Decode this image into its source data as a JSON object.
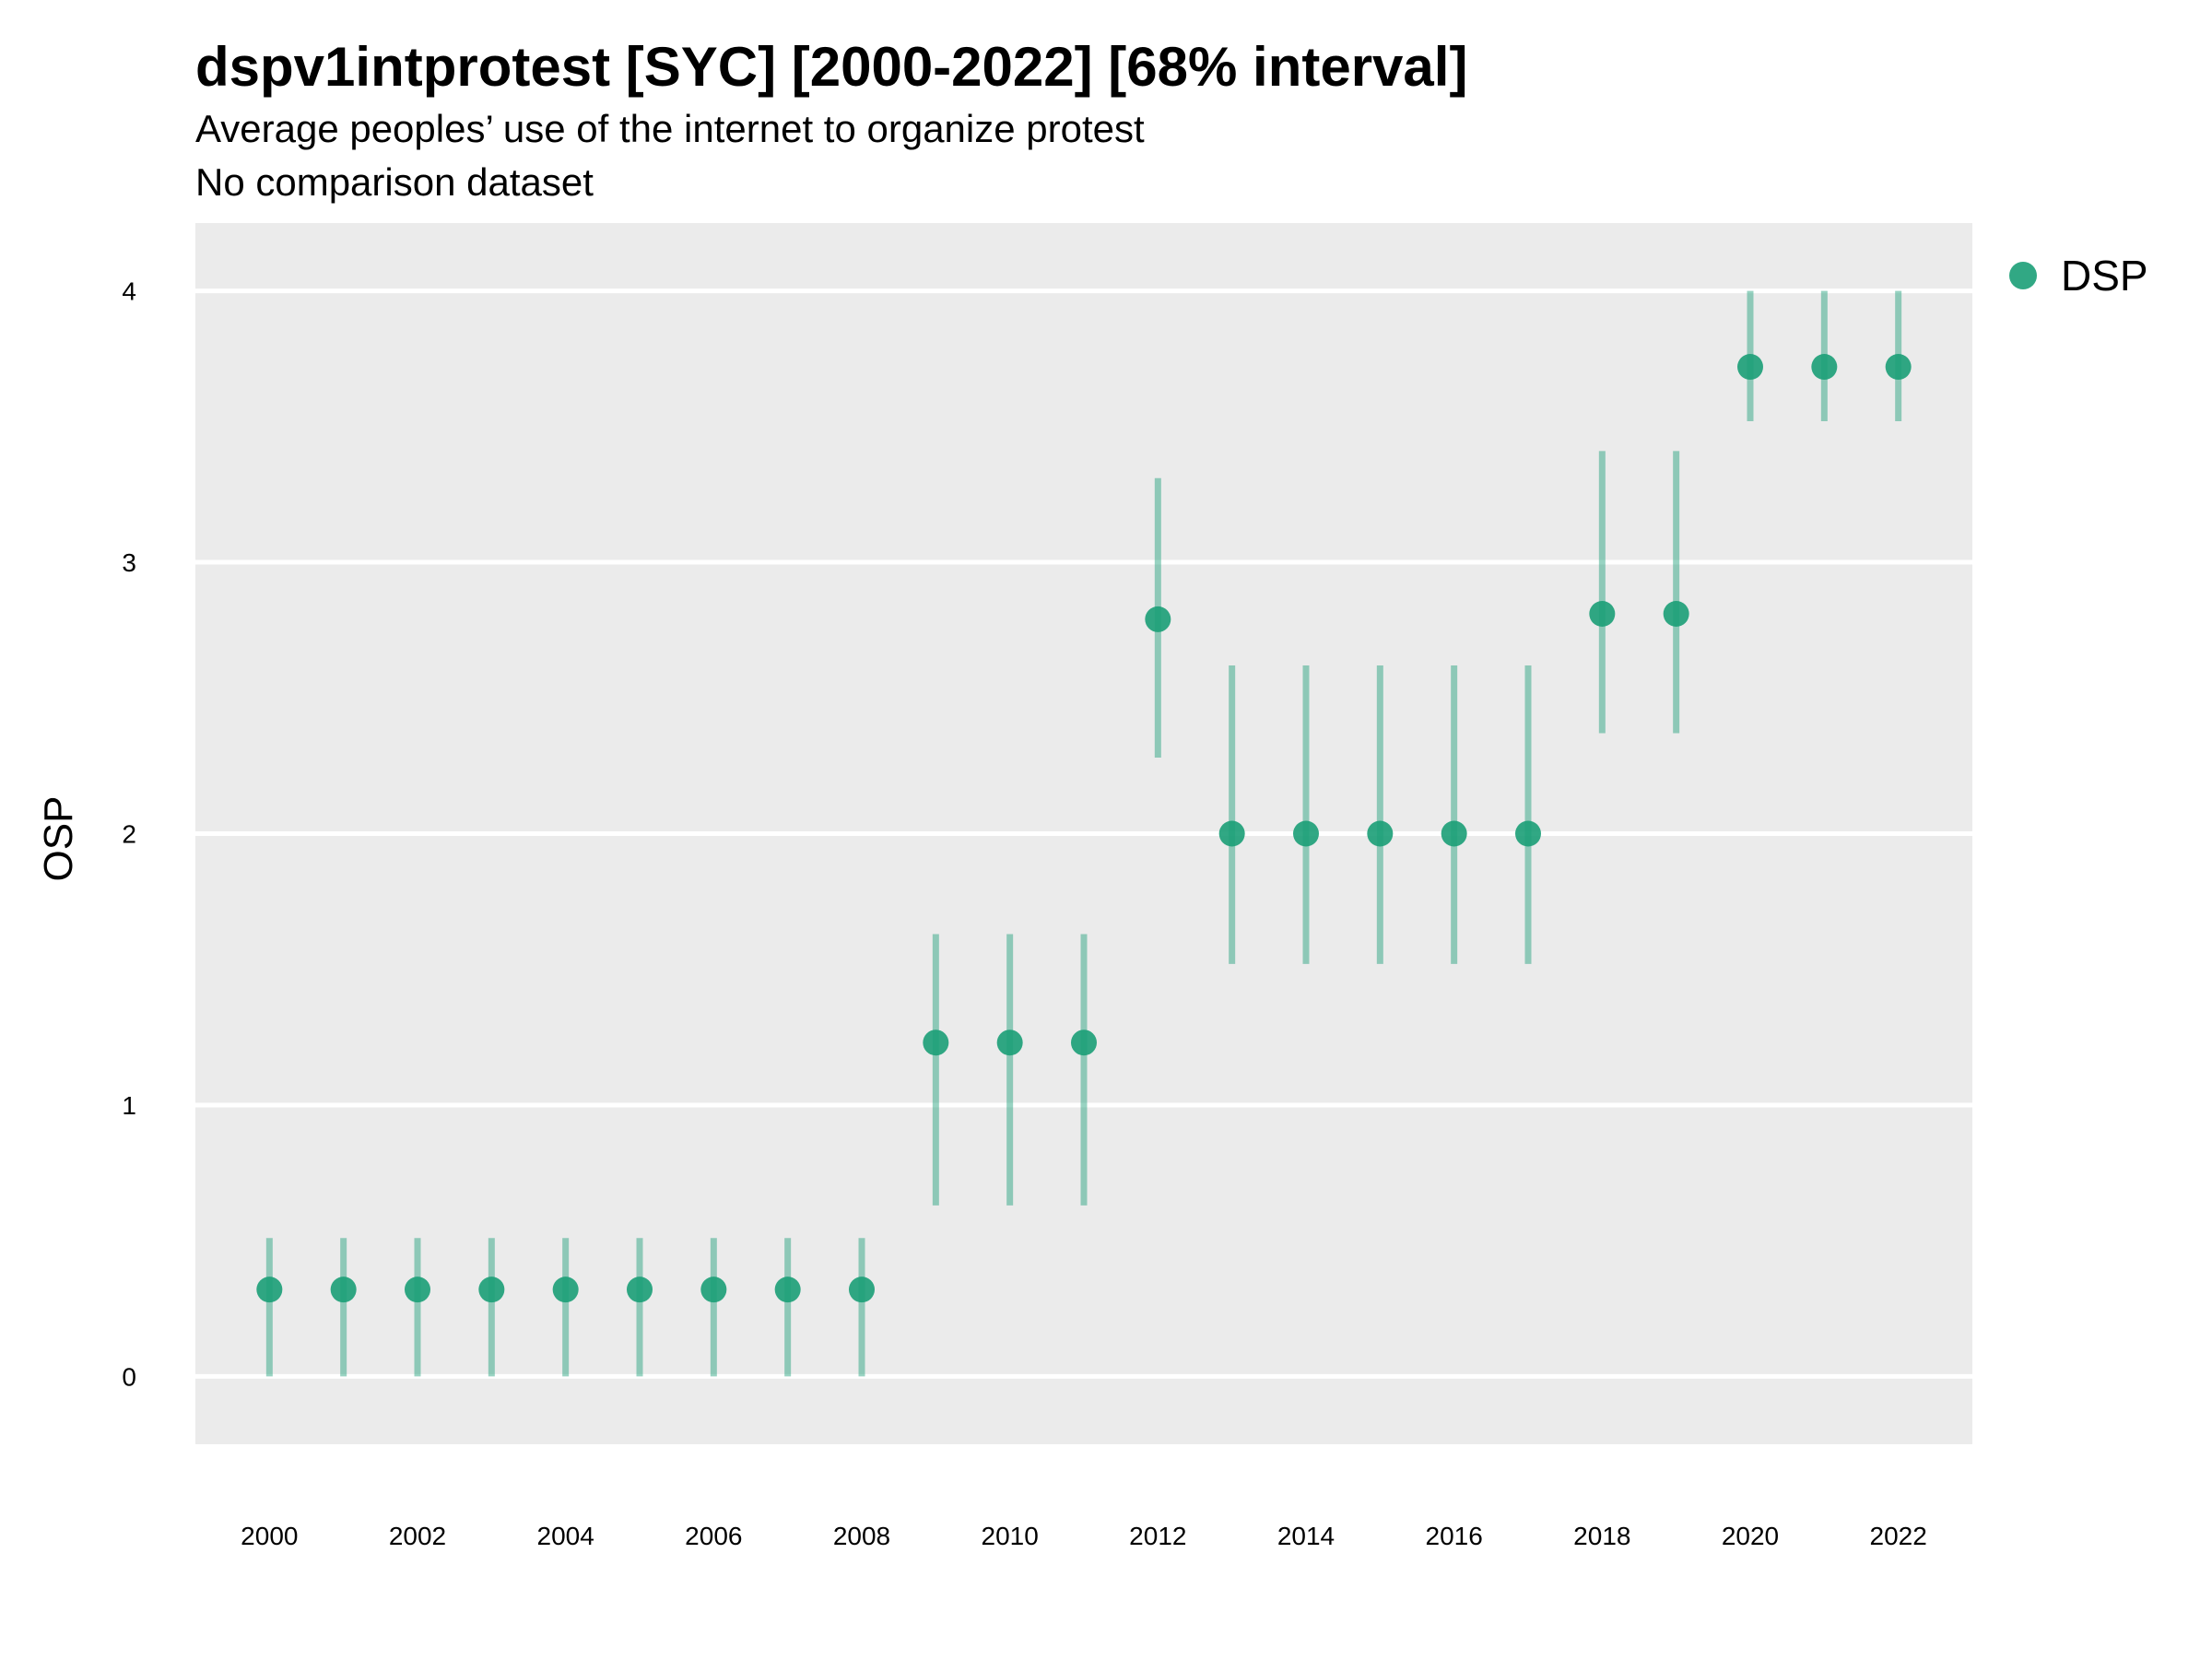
{
  "title": "dspv1intprotest [SYC] [2000-2022] [68% interval]",
  "subtitle": "Average peoples’ use of the internet to organize protest",
  "subtitle2": "No comparison dataset",
  "chart_data": {
    "type": "scatter",
    "ylabel": "OSP",
    "xlabel": "",
    "ylim": [
      -0.25,
      4.25
    ],
    "xlim": [
      1999,
      2023
    ],
    "yticks": [
      0,
      1,
      2,
      3,
      4
    ],
    "xticks": [
      2000,
      2002,
      2004,
      2006,
      2008,
      2010,
      2012,
      2014,
      2016,
      2018,
      2020,
      2022
    ],
    "grid": "horizontal major lines",
    "legend_position": "right",
    "colors": {
      "series": "#1b9e77",
      "panel": "#ebebeb",
      "grid": "#ffffff"
    },
    "series": [
      {
        "name": "DSP",
        "x": [
          2000,
          2001,
          2002,
          2003,
          2004,
          2005,
          2006,
          2007,
          2008,
          2009,
          2010,
          2011,
          2012,
          2013,
          2014,
          2015,
          2016,
          2017,
          2018,
          2019,
          2020,
          2021,
          2022
        ],
        "y": [
          0.32,
          0.32,
          0.32,
          0.32,
          0.32,
          0.32,
          0.32,
          0.32,
          0.32,
          1.23,
          1.23,
          1.23,
          2.79,
          2.0,
          2.0,
          2.0,
          2.0,
          2.0,
          2.81,
          2.81,
          3.72,
          3.72,
          3.72
        ],
        "lower": [
          0.0,
          0.0,
          0.0,
          0.0,
          0.0,
          0.0,
          0.0,
          0.0,
          0.0,
          0.63,
          0.63,
          0.63,
          2.28,
          1.52,
          1.52,
          1.52,
          1.52,
          1.52,
          2.37,
          2.37,
          3.52,
          3.52,
          3.52
        ],
        "upper": [
          0.51,
          0.51,
          0.51,
          0.51,
          0.51,
          0.51,
          0.51,
          0.51,
          0.51,
          1.63,
          1.63,
          1.63,
          3.31,
          2.62,
          2.62,
          2.62,
          2.62,
          2.62,
          3.41,
          3.41,
          4.0,
          4.0,
          4.0
        ]
      }
    ]
  }
}
